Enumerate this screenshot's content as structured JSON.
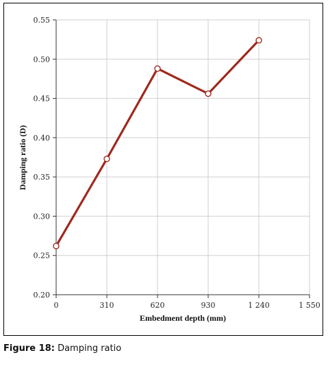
{
  "caption": {
    "label": "Figure 18:",
    "text": " Damping ratio"
  },
  "chart_data": {
    "type": "line",
    "xlabel": "Embedment depth (mm)",
    "ylabel": "Damping ratio (D)",
    "x_ticks": [
      "0",
      "310",
      "620",
      "930",
      "1 240",
      "1 550"
    ],
    "y_ticks": [
      "0.20",
      "0.25",
      "0.30",
      "0.35",
      "0.40",
      "0.45",
      "0.50",
      "0.55"
    ],
    "xlim": [
      0,
      1550
    ],
    "ylim": [
      0.2,
      0.55
    ],
    "grid": true,
    "series": [
      {
        "color": "#9e2a1e",
        "marker": "hollow-circle",
        "x": [
          0,
          310,
          620,
          930,
          1240
        ],
        "y": [
          0.262,
          0.373,
          0.488,
          0.456,
          0.524
        ]
      }
    ]
  }
}
